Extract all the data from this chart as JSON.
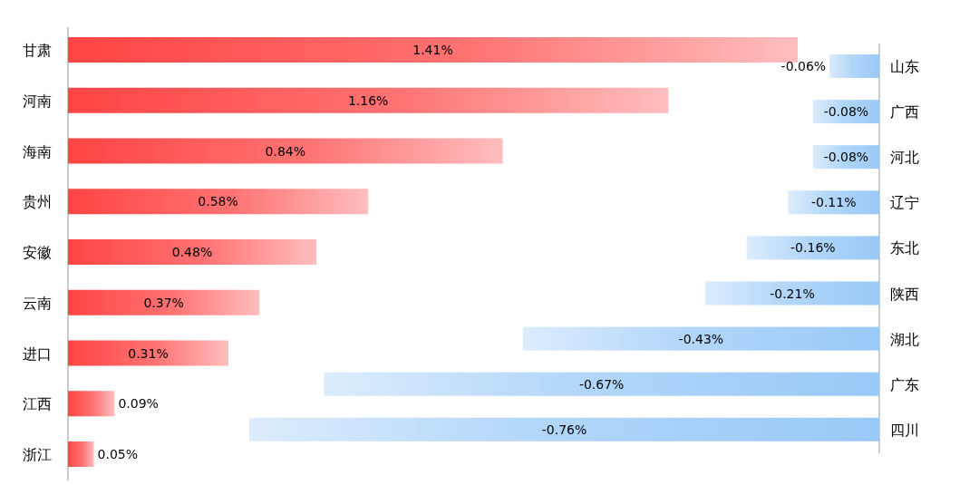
{
  "chart_data": [
    {
      "type": "bar",
      "orientation": "horizontal",
      "categories": [
        "甘肃",
        "河南",
        "海南",
        "贵州",
        "安徽",
        "云南",
        "进口",
        "江西",
        "浙江"
      ],
      "series": [
        {
          "color": "#ff4444",
          "values": [
            1.41,
            1.16,
            0.84,
            0.58,
            0.48,
            0.37,
            0.31,
            0.09,
            0.05
          ],
          "value_labels": [
            "1.41%",
            "1.16%",
            "0.84%",
            "0.58%",
            "0.48%",
            "0.37%",
            "0.31%",
            "0.09%",
            "0.05%"
          ]
        }
      ]
    },
    {
      "type": "bar",
      "orientation": "horizontal",
      "categories": [
        "山东",
        "广西",
        "河北",
        "辽宁",
        "东北",
        "陕西",
        "湖北",
        "广东",
        "四川"
      ],
      "series": [
        {
          "color": "#99c9f7",
          "values": [
            -0.06,
            -0.08,
            -0.08,
            -0.11,
            -0.16,
            -0.21,
            -0.43,
            -0.67,
            -0.76
          ],
          "value_labels": [
            "-0.06%",
            "-0.08%",
            "-0.08%",
            "-0.11%",
            "-0.16%",
            "-0.21%",
            "-0.43%",
            "-0.67%",
            "-0.76%"
          ]
        }
      ]
    }
  ]
}
